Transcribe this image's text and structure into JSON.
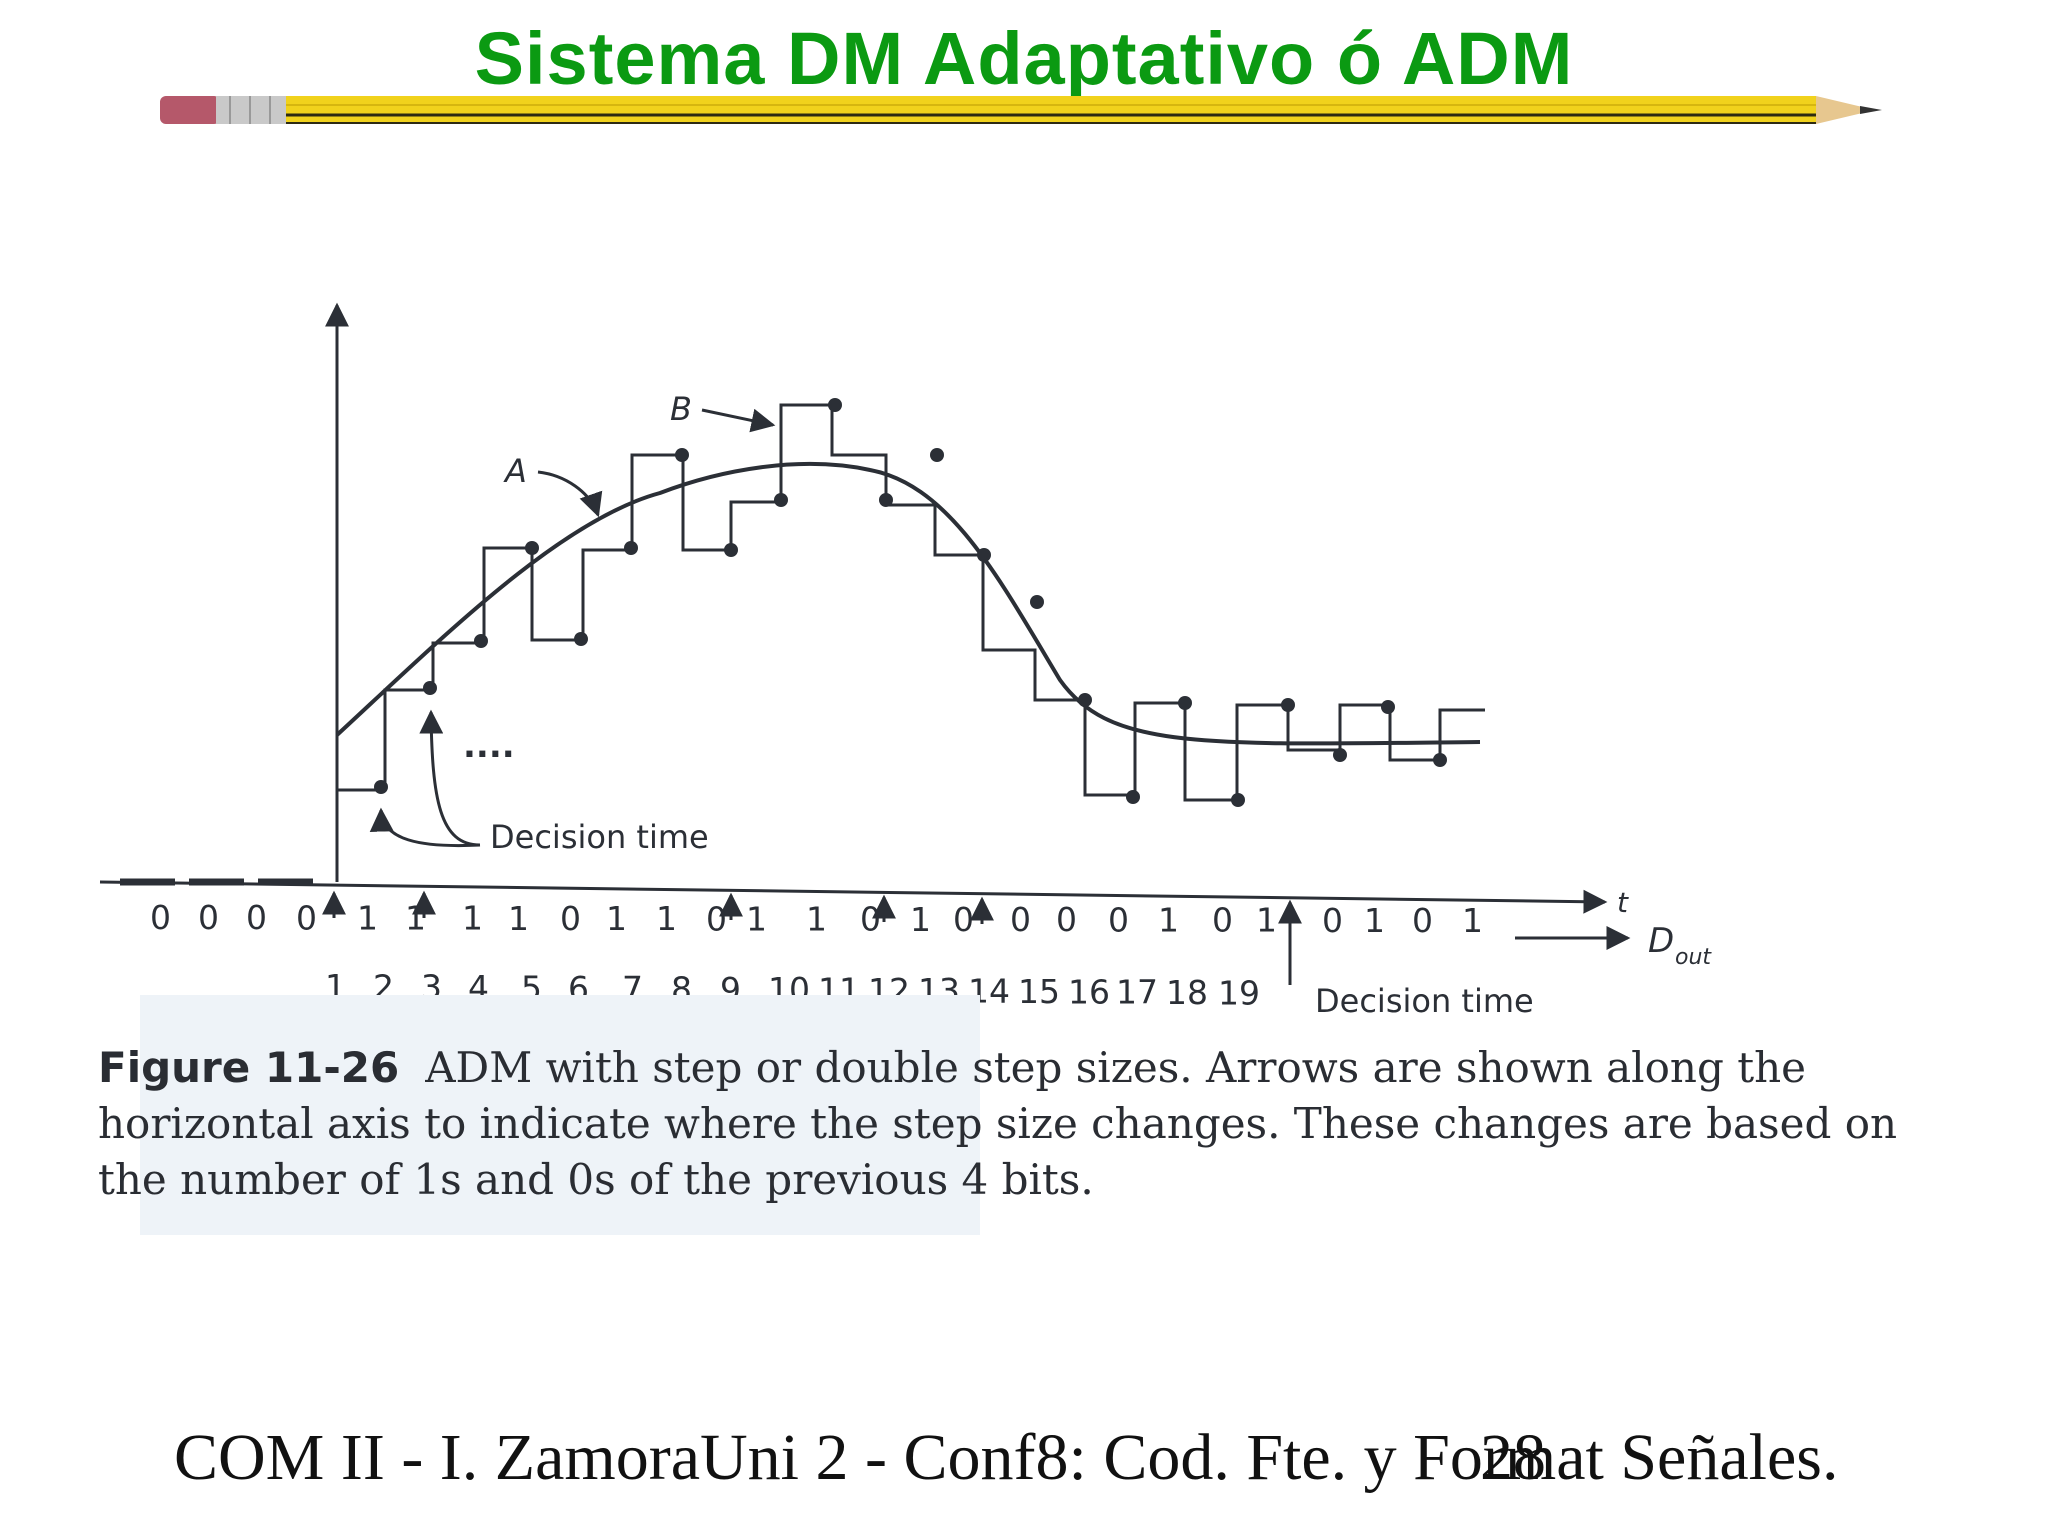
{
  "slide": {
    "title": "Sistema DM Adaptativo ó ADM",
    "footer": "COM II - I. ZamoraUni 2 - Conf8: Cod. Fte. y Format Señales.",
    "page_number": "28"
  },
  "colors": {
    "title": "#0b9a12",
    "ink": "#2b2f36",
    "pencil_body": "#f1d21c",
    "pencil_eraser": "#b5586a",
    "caption_bg": "#eef3f8"
  },
  "figure": {
    "curve_label_a": "A",
    "step_label_b": "B",
    "ellipsis": "....",
    "decision_time_label_left": "Decision time",
    "decision_time_label_right": "Decision time",
    "axis_t_label": "t",
    "dout_main": "D",
    "dout_sub": "out",
    "bits": [
      "0",
      "0",
      "0",
      "0",
      "1",
      "1",
      "1",
      "1",
      "0",
      "1",
      "1",
      "0",
      "1",
      "1",
      "0",
      "1",
      "0",
      "0",
      "0",
      "0",
      "1",
      "0",
      "1",
      "0",
      "1",
      "0",
      "1"
    ],
    "indices": [
      "1",
      "2",
      "3",
      "4",
      "5",
      "6",
      "7",
      "8",
      "9",
      "10",
      "11",
      "12",
      "13",
      "14",
      "15",
      "16",
      "17",
      "18",
      "19"
    ],
    "caption_label": "Figure 11-26",
    "caption_text": "ADM with step or double step sizes. Arrows are shown along the horizontal axis to indicate where the step size changes. These changes are based on the number of 1s and 0s of the previous 4 bits."
  }
}
